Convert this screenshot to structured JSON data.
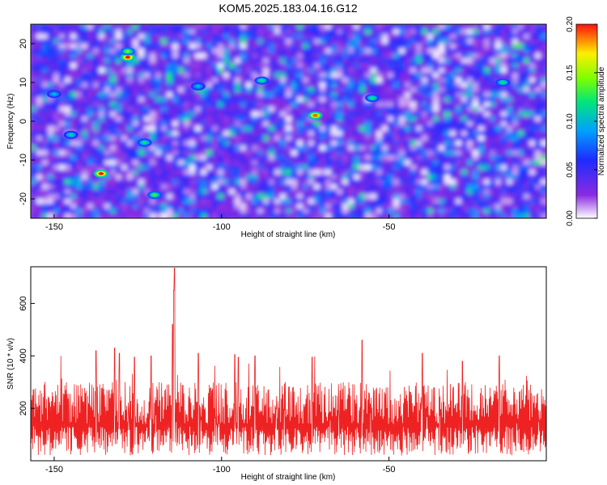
{
  "title": "KOM5.2025.183.04.16.G12",
  "chart_data": [
    {
      "type": "heatmap",
      "xlabel": "Height of straight line (km)",
      "ylabel": "Frequency (Hz)",
      "xlim": [
        -157,
        -3
      ],
      "ylim": [
        -25,
        25
      ],
      "xticks": [
        -150,
        -100,
        -50
      ],
      "yticks": [
        -20,
        -10,
        0,
        10,
        20
      ],
      "colorbar": {
        "label": "Normalized spectral amplitude",
        "range": [
          0.0,
          0.2
        ],
        "ticks": [
          "0.00",
          "0.05",
          "0.10",
          "0.15",
          "0.20"
        ]
      },
      "blobs": [
        {
          "x": -128,
          "y": 16.5,
          "v": 0.2
        },
        {
          "x": -136,
          "y": -13.5,
          "v": 0.2
        },
        {
          "x": -72,
          "y": 1.5,
          "v": 0.19
        },
        {
          "x": -128,
          "y": 18,
          "v": 0.14
        },
        {
          "x": -120,
          "y": -19,
          "v": 0.13
        },
        {
          "x": -123,
          "y": -5.5,
          "v": 0.12
        },
        {
          "x": -145,
          "y": -3.5,
          "v": 0.11
        },
        {
          "x": -55,
          "y": 6,
          "v": 0.12
        },
        {
          "x": -16,
          "y": 10,
          "v": 0.12
        },
        {
          "x": -150,
          "y": 7,
          "v": 0.1
        },
        {
          "x": -107,
          "y": 9,
          "v": 0.1
        },
        {
          "x": -88,
          "y": 10.5,
          "v": 0.12
        }
      ]
    },
    {
      "type": "line",
      "xlabel": "Height of straight line (km)",
      "ylabel": "SNR (10 * v/v)",
      "xlim": [
        -157,
        -3
      ],
      "ylim": [
        0,
        740
      ],
      "xticks": [
        -150,
        -100,
        -50
      ],
      "yticks": [
        200,
        400,
        600
      ],
      "color": "#ee2222",
      "baseline_mean": 130,
      "peaks": [
        {
          "x": -114.1,
          "y": 735
        },
        {
          "x": -114.3,
          "y": 650
        },
        {
          "x": -114.6,
          "y": 520
        },
        {
          "x": -137.5,
          "y": 420
        },
        {
          "x": -132.0,
          "y": 430
        },
        {
          "x": -130.5,
          "y": 410
        },
        {
          "x": -126.0,
          "y": 395
        },
        {
          "x": -121.0,
          "y": 400
        },
        {
          "x": -107.0,
          "y": 410
        },
        {
          "x": -96.0,
          "y": 405
        },
        {
          "x": -95.0,
          "y": 395
        },
        {
          "x": -90.0,
          "y": 400
        },
        {
          "x": -73.0,
          "y": 395
        },
        {
          "x": -58.0,
          "y": 460
        },
        {
          "x": -40.0,
          "y": 410
        },
        {
          "x": -28.0,
          "y": 380
        },
        {
          "x": -17.0,
          "y": 400
        }
      ]
    }
  ]
}
